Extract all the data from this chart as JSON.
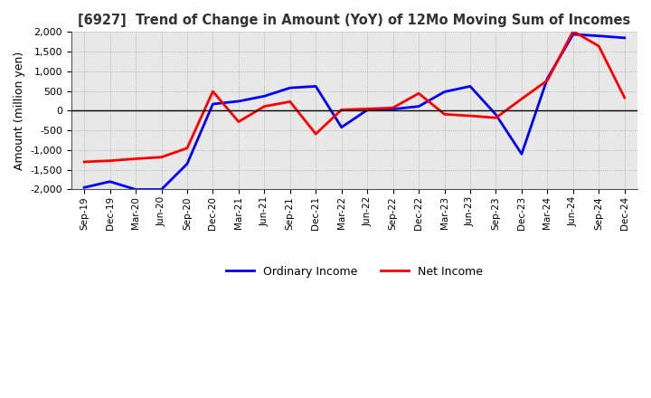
{
  "title": "[6927]  Trend of Change in Amount (YoY) of 12Mo Moving Sum of Incomes",
  "ylabel": "Amount (million yen)",
  "ylim": [
    -2000,
    2000
  ],
  "yticks": [
    -2000,
    -1500,
    -1000,
    -500,
    0,
    500,
    1000,
    1500,
    2000
  ],
  "x_labels": [
    "Sep-19",
    "Dec-19",
    "Mar-20",
    "Jun-20",
    "Sep-20",
    "Dec-20",
    "Mar-21",
    "Jun-21",
    "Sep-21",
    "Dec-21",
    "Mar-22",
    "Jun-22",
    "Sep-22",
    "Dec-22",
    "Mar-23",
    "Jun-23",
    "Sep-23",
    "Dec-23",
    "Mar-24",
    "Jun-24",
    "Sep-24",
    "Dec-24"
  ],
  "ordinary_income": [
    -1950,
    -1800,
    -2000,
    -2000,
    -1350,
    170,
    240,
    370,
    580,
    620,
    -420,
    20,
    40,
    110,
    480,
    620,
    -100,
    -1100,
    820,
    1940,
    1900,
    1850
  ],
  "net_income": [
    -1300,
    -1270,
    -1220,
    -1180,
    -950,
    490,
    -280,
    110,
    230,
    -590,
    25,
    45,
    75,
    440,
    -90,
    -130,
    -180,
    300,
    770,
    2020,
    1640,
    330
  ],
  "ordinary_color": "#0000ff",
  "net_color": "#ff0000",
  "line_width": 2.0,
  "legend_ordinary": "Ordinary Income",
  "legend_net": "Net Income",
  "plot_bg_color": "#e8e8e8",
  "fig_bg_color": "#ffffff",
  "grid_color": "#888888"
}
